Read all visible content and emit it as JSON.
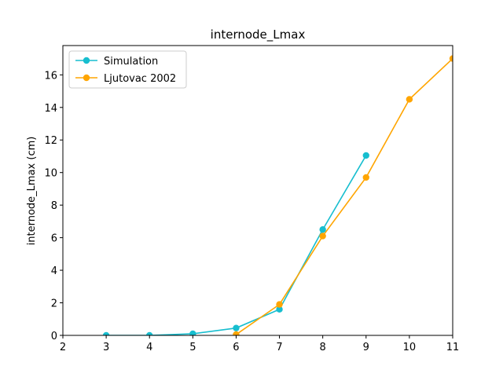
{
  "chart_data": {
    "type": "line",
    "title": "internode_Lmax",
    "xlabel": "",
    "ylabel": "internode_Lmax (cm)",
    "xlim": [
      2,
      11
    ],
    "ylim": [
      0,
      17.8
    ],
    "xticks": [
      2,
      3,
      4,
      5,
      6,
      7,
      8,
      9,
      10,
      11
    ],
    "yticks": [
      0,
      2,
      4,
      6,
      8,
      10,
      12,
      14,
      16
    ],
    "grid": false,
    "legend_position": "top-left",
    "series": [
      {
        "name": "Simulation",
        "color": "#17becf",
        "marker": "circle",
        "x": [
          3,
          4,
          5,
          6,
          7,
          8,
          9
        ],
        "y": [
          0.0,
          0.0,
          0.1,
          0.45,
          1.6,
          6.5,
          11.05
        ]
      },
      {
        "name": "Ljutovac 2002",
        "color": "#ffa500",
        "marker": "circle",
        "x": [
          6,
          7,
          8,
          9,
          10,
          11
        ],
        "y": [
          0.05,
          1.9,
          6.1,
          9.7,
          14.5,
          17.0
        ]
      }
    ]
  }
}
